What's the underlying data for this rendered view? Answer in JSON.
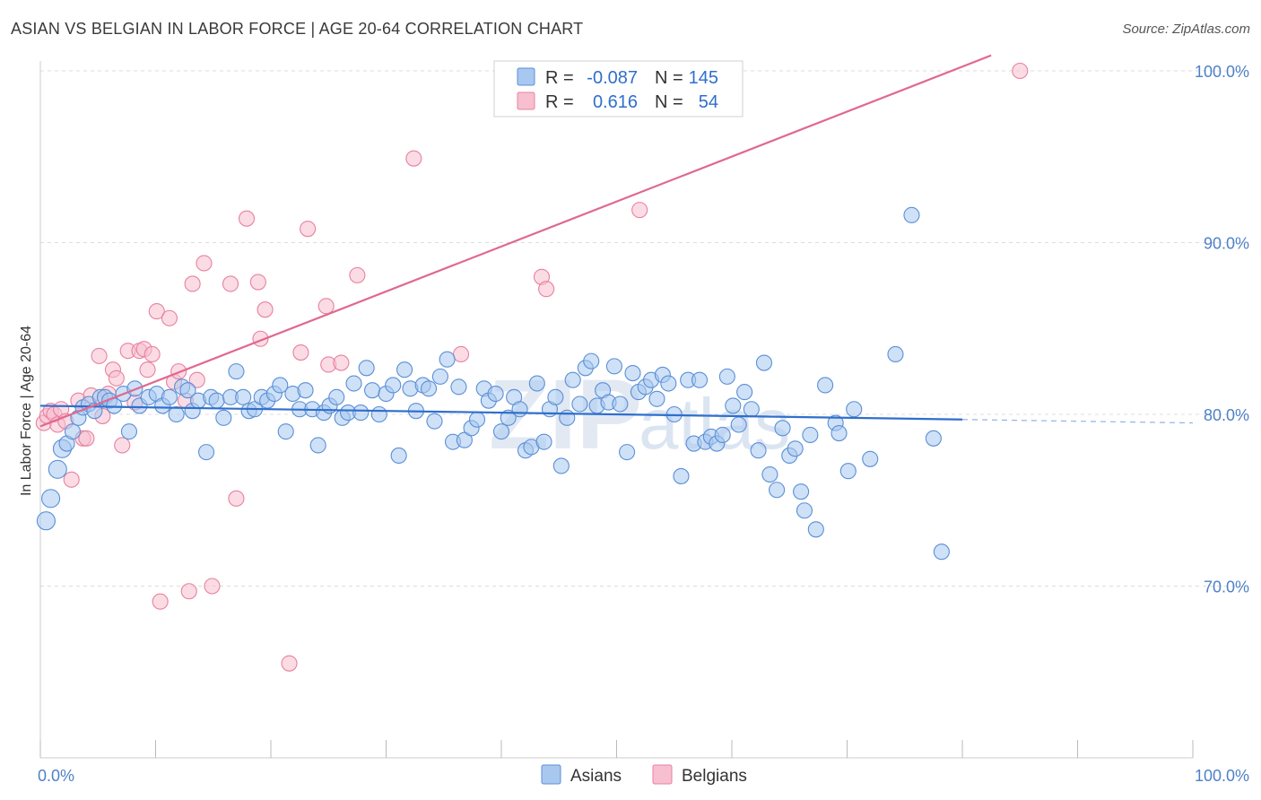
{
  "header": {
    "title": "ASIAN VS BELGIAN IN LABOR FORCE | AGE 20-64 CORRELATION CHART",
    "source": "Source: ZipAtlas.com"
  },
  "watermark": {
    "zip": "ZIP",
    "atlas": "atlas"
  },
  "legend": {
    "row1": {
      "r_label": "R =",
      "r_value": "-0.087",
      "n_label": "N =",
      "n_value": "145"
    },
    "row2": {
      "r_label": "R =",
      "r_value": "0.616",
      "n_label": "N =",
      "n_value": "54"
    }
  },
  "colors": {
    "asian_fill": "#a8c8f0",
    "asian_stroke": "#5a8fd6",
    "asian_line": "#2f6fcc",
    "belgian_fill": "#f7bfd0",
    "belgian_stroke": "#e8809f",
    "belgian_line": "#e06890",
    "tick_text": "#4f81c7",
    "grid": "#dddddd"
  },
  "chart_data": {
    "type": "scatter",
    "title": "ASIAN VS BELGIAN IN LABOR FORCE | AGE 20-64 CORRELATION CHART",
    "xlabel": "",
    "ylabel": "In Labor Force | Age 20-64",
    "xlim": [
      0,
      100
    ],
    "ylim": [
      60.5,
      101.5
    ],
    "x_tick_labels": [
      "0.0%",
      "100.0%"
    ],
    "y_ticks": [
      100,
      90,
      80,
      70
    ],
    "y_tick_labels": [
      "100.0%",
      "90.0%",
      "80.0%",
      "70.0%"
    ],
    "grid": true,
    "legend_position": "top-center",
    "series": [
      {
        "name": "Asians",
        "r": -0.087,
        "n": 145,
        "trend": {
          "x": [
            0,
            80
          ],
          "y": [
            80.5,
            79.7
          ],
          "dashed_extension_to": [
            100,
            79.5
          ]
        },
        "points": [
          [
            0.5,
            73.8
          ],
          [
            0.9,
            75.1
          ],
          [
            1.5,
            76.8
          ],
          [
            1.9,
            78.0
          ],
          [
            2.3,
            78.3
          ],
          [
            2.8,
            79.0
          ],
          [
            3.3,
            79.8
          ],
          [
            3.7,
            80.4
          ],
          [
            4.2,
            80.6
          ],
          [
            4.7,
            80.2
          ],
          [
            5.2,
            81.0
          ],
          [
            5.6,
            81.0
          ],
          [
            6.0,
            80.8
          ],
          [
            6.4,
            80.5
          ],
          [
            7.2,
            81.2
          ],
          [
            7.7,
            79.0
          ],
          [
            8.2,
            81.5
          ],
          [
            8.6,
            80.5
          ],
          [
            9.4,
            81.0
          ],
          [
            10.1,
            81.2
          ],
          [
            10.6,
            80.5
          ],
          [
            11.2,
            81.0
          ],
          [
            11.8,
            80.0
          ],
          [
            12.3,
            81.6
          ],
          [
            12.8,
            81.4
          ],
          [
            13.2,
            80.2
          ],
          [
            13.7,
            80.8
          ],
          [
            14.4,
            77.8
          ],
          [
            14.8,
            81.0
          ],
          [
            15.3,
            80.8
          ],
          [
            15.9,
            79.8
          ],
          [
            16.5,
            81.0
          ],
          [
            17.0,
            82.5
          ],
          [
            17.6,
            81.0
          ],
          [
            18.1,
            80.2
          ],
          [
            18.6,
            80.3
          ],
          [
            19.2,
            81.0
          ],
          [
            19.7,
            80.8
          ],
          [
            20.3,
            81.2
          ],
          [
            20.8,
            81.7
          ],
          [
            21.3,
            79.0
          ],
          [
            21.9,
            81.2
          ],
          [
            22.5,
            80.3
          ],
          [
            23.0,
            81.4
          ],
          [
            23.6,
            80.3
          ],
          [
            24.1,
            78.2
          ],
          [
            24.6,
            80.1
          ],
          [
            25.1,
            80.5
          ],
          [
            25.7,
            81.0
          ],
          [
            26.2,
            79.8
          ],
          [
            26.7,
            80.1
          ],
          [
            27.2,
            81.8
          ],
          [
            27.8,
            80.1
          ],
          [
            28.3,
            82.7
          ],
          [
            28.8,
            81.4
          ],
          [
            29.4,
            80.0
          ],
          [
            30.0,
            81.2
          ],
          [
            30.6,
            81.7
          ],
          [
            31.1,
            77.6
          ],
          [
            31.6,
            82.6
          ],
          [
            32.1,
            81.5
          ],
          [
            32.6,
            80.2
          ],
          [
            33.2,
            81.7
          ],
          [
            33.7,
            81.5
          ],
          [
            34.2,
            79.6
          ],
          [
            34.7,
            82.2
          ],
          [
            35.3,
            83.2
          ],
          [
            35.8,
            78.4
          ],
          [
            36.3,
            81.6
          ],
          [
            36.8,
            78.5
          ],
          [
            37.4,
            79.2
          ],
          [
            37.9,
            79.7
          ],
          [
            38.5,
            81.5
          ],
          [
            38.9,
            80.8
          ],
          [
            39.5,
            81.2
          ],
          [
            40.0,
            79.0
          ],
          [
            40.6,
            79.8
          ],
          [
            41.1,
            81.0
          ],
          [
            41.6,
            80.3
          ],
          [
            42.1,
            77.9
          ],
          [
            42.6,
            78.1
          ],
          [
            43.1,
            81.8
          ],
          [
            43.7,
            78.4
          ],
          [
            44.2,
            80.3
          ],
          [
            44.7,
            81.0
          ],
          [
            45.2,
            77.0
          ],
          [
            45.7,
            79.8
          ],
          [
            46.2,
            82.0
          ],
          [
            46.8,
            80.6
          ],
          [
            47.3,
            82.7
          ],
          [
            47.8,
            83.1
          ],
          [
            48.3,
            80.5
          ],
          [
            48.8,
            81.4
          ],
          [
            49.3,
            80.7
          ],
          [
            49.8,
            82.8
          ],
          [
            50.3,
            80.6
          ],
          [
            50.9,
            77.8
          ],
          [
            51.4,
            82.4
          ],
          [
            51.9,
            81.3
          ],
          [
            52.5,
            81.6
          ],
          [
            53.0,
            82.0
          ],
          [
            53.5,
            80.9
          ],
          [
            54.0,
            82.3
          ],
          [
            54.5,
            81.8
          ],
          [
            55.0,
            80.0
          ],
          [
            55.6,
            76.4
          ],
          [
            56.2,
            82.0
          ],
          [
            56.7,
            78.3
          ],
          [
            57.2,
            82.0
          ],
          [
            57.7,
            78.4
          ],
          [
            58.2,
            78.7
          ],
          [
            58.7,
            78.3
          ],
          [
            59.2,
            78.8
          ],
          [
            59.6,
            82.2
          ],
          [
            60.1,
            80.5
          ],
          [
            60.6,
            79.4
          ],
          [
            61.1,
            81.3
          ],
          [
            61.7,
            80.3
          ],
          [
            62.3,
            77.9
          ],
          [
            62.8,
            83.0
          ],
          [
            63.3,
            76.5
          ],
          [
            63.9,
            75.6
          ],
          [
            64.4,
            79.2
          ],
          [
            65.0,
            77.6
          ],
          [
            65.5,
            78.0
          ],
          [
            66.0,
            75.5
          ],
          [
            66.3,
            74.4
          ],
          [
            66.8,
            78.8
          ],
          [
            67.3,
            73.3
          ],
          [
            68.1,
            81.7
          ],
          [
            69.0,
            79.5
          ],
          [
            69.3,
            78.9
          ],
          [
            70.1,
            76.7
          ],
          [
            70.6,
            80.3
          ],
          [
            72.0,
            77.4
          ],
          [
            74.2,
            83.5
          ],
          [
            75.6,
            91.6
          ],
          [
            77.5,
            78.6
          ],
          [
            78.2,
            72.0
          ]
        ]
      },
      {
        "name": "Belgians",
        "r": 0.616,
        "n": 54,
        "trend": {
          "x": [
            0,
            82.5
          ],
          "y": [
            79.3,
            100.9
          ]
        },
        "points": [
          [
            0.3,
            79.5
          ],
          [
            0.6,
            79.9
          ],
          [
            0.9,
            80.2
          ],
          [
            1.2,
            80.0
          ],
          [
            1.5,
            79.4
          ],
          [
            1.8,
            80.3
          ],
          [
            2.2,
            79.6
          ],
          [
            2.7,
            76.2
          ],
          [
            3.3,
            80.8
          ],
          [
            3.7,
            78.6
          ],
          [
            4.0,
            78.6
          ],
          [
            4.4,
            81.1
          ],
          [
            5.1,
            83.4
          ],
          [
            5.4,
            79.9
          ],
          [
            5.9,
            81.2
          ],
          [
            6.3,
            82.6
          ],
          [
            6.6,
            82.1
          ],
          [
            7.1,
            78.2
          ],
          [
            7.6,
            83.7
          ],
          [
            8.2,
            80.7
          ],
          [
            8.6,
            83.7
          ],
          [
            9.0,
            83.8
          ],
          [
            9.3,
            82.6
          ],
          [
            9.7,
            83.5
          ],
          [
            10.1,
            86.0
          ],
          [
            10.4,
            69.1
          ],
          [
            11.2,
            85.6
          ],
          [
            11.6,
            81.9
          ],
          [
            12.0,
            82.5
          ],
          [
            12.6,
            80.8
          ],
          [
            12.9,
            69.7
          ],
          [
            13.2,
            87.6
          ],
          [
            13.6,
            82.0
          ],
          [
            14.2,
            88.8
          ],
          [
            14.9,
            70.0
          ],
          [
            16.5,
            87.6
          ],
          [
            17.0,
            75.1
          ],
          [
            17.9,
            91.4
          ],
          [
            18.9,
            87.7
          ],
          [
            19.1,
            84.4
          ],
          [
            19.5,
            86.1
          ],
          [
            21.6,
            65.5
          ],
          [
            22.6,
            83.6
          ],
          [
            23.2,
            90.8
          ],
          [
            24.8,
            86.3
          ],
          [
            25.0,
            82.9
          ],
          [
            26.1,
            83.0
          ],
          [
            27.5,
            88.1
          ],
          [
            32.4,
            94.9
          ],
          [
            36.5,
            83.5
          ],
          [
            43.5,
            88.0
          ],
          [
            43.9,
            87.3
          ],
          [
            52.0,
            91.9
          ],
          [
            85.0,
            100.0
          ]
        ]
      }
    ]
  }
}
